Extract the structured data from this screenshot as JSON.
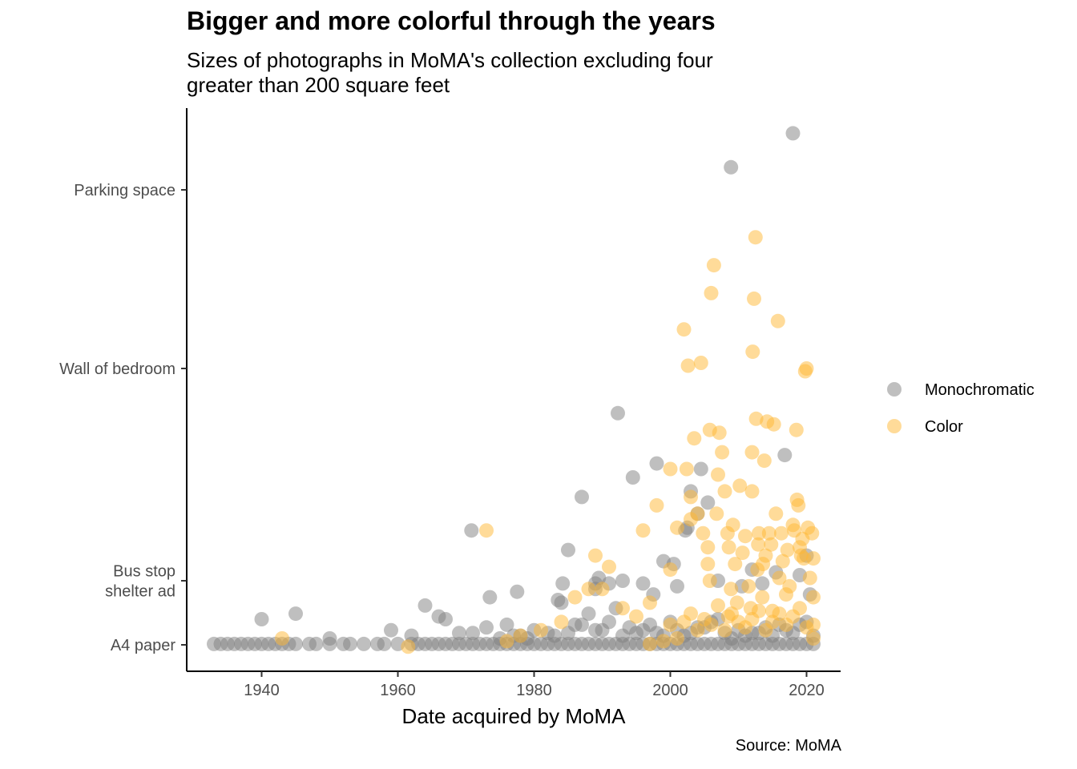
{
  "chart_data": {
    "type": "scatter",
    "title": "Bigger and more colorful through the years",
    "subtitle": [
      "Sizes of photographs in MoMA's collection excluding four",
      "greater than 200 square feet"
    ],
    "caption": "Source: MoMA",
    "xlabel": "Date acquired by MoMA",
    "ylabel": "",
    "xlim": [
      1929,
      2025
    ],
    "ylim": [
      -3,
      200
    ],
    "grid": false,
    "legend_position": "right",
    "x_ticks": [
      1940,
      1960,
      1980,
      2000,
      2020
    ],
    "y_ticks": [
      {
        "value": 0.67,
        "label": [
          "A4 paper"
        ]
      },
      {
        "value": 24,
        "label": [
          "Bus stop",
          "shelter ad"
        ]
      },
      {
        "value": 100,
        "label": [
          "Wall of bedroom"
        ]
      },
      {
        "value": 164,
        "label": [
          "Parking space"
        ]
      }
    ],
    "colors": {
      "Monochromatic": "#808080",
      "Color": "#ffb833"
    },
    "series": [
      {
        "name": "Monochromatic",
        "color": "#808080",
        "points": [
          [
            1933,
            1
          ],
          [
            1934,
            1
          ],
          [
            1935,
            1
          ],
          [
            1936,
            1
          ],
          [
            1937,
            1
          ],
          [
            1938,
            1
          ],
          [
            1939,
            1
          ],
          [
            1940,
            1
          ],
          [
            1941,
            1
          ],
          [
            1942,
            1
          ],
          [
            1943,
            1
          ],
          [
            1944,
            1
          ],
          [
            1945,
            1
          ],
          [
            1947,
            1
          ],
          [
            1948,
            1
          ],
          [
            1950,
            1
          ],
          [
            1952,
            1
          ],
          [
            1953,
            1
          ],
          [
            1955,
            1
          ],
          [
            1957,
            1
          ],
          [
            1958,
            1
          ],
          [
            1960,
            1
          ],
          [
            1962,
            1
          ],
          [
            1963,
            1
          ],
          [
            1964,
            1
          ],
          [
            1965,
            1
          ],
          [
            1966,
            1
          ],
          [
            1967,
            1
          ],
          [
            1968,
            1
          ],
          [
            1969,
            1
          ],
          [
            1970,
            1
          ],
          [
            1971,
            1
          ],
          [
            1972,
            1
          ],
          [
            1973,
            1
          ],
          [
            1974,
            1
          ],
          [
            1975,
            1
          ],
          [
            1976,
            1
          ],
          [
            1977,
            1
          ],
          [
            1978,
            1
          ],
          [
            1979,
            1
          ],
          [
            1980,
            1
          ],
          [
            1981,
            1
          ],
          [
            1982,
            1
          ],
          [
            1983,
            1
          ],
          [
            1984,
            1
          ],
          [
            1985,
            1
          ],
          [
            1986,
            1
          ],
          [
            1987,
            1
          ],
          [
            1988,
            1
          ],
          [
            1989,
            1
          ],
          [
            1990,
            1
          ],
          [
            1991,
            1
          ],
          [
            1992,
            1
          ],
          [
            1993,
            1
          ],
          [
            1994,
            1
          ],
          [
            1995,
            1
          ],
          [
            1996,
            1
          ],
          [
            1997,
            1
          ],
          [
            1998,
            1
          ],
          [
            1999,
            1
          ],
          [
            2000,
            1
          ],
          [
            2001,
            1
          ],
          [
            2002,
            1
          ],
          [
            2003,
            1
          ],
          [
            2004,
            1
          ],
          [
            2005,
            1
          ],
          [
            2006,
            1
          ],
          [
            2007,
            1
          ],
          [
            2008,
            1
          ],
          [
            2009,
            1
          ],
          [
            2010,
            1
          ],
          [
            2011,
            1
          ],
          [
            2012,
            1
          ],
          [
            2013,
            1
          ],
          [
            2014,
            1
          ],
          [
            2015,
            1
          ],
          [
            2016,
            1
          ],
          [
            2017,
            1
          ],
          [
            2018,
            1
          ],
          [
            2019,
            1
          ],
          [
            2020,
            1
          ],
          [
            2021,
            1
          ],
          [
            1940,
            10
          ],
          [
            1945,
            12
          ],
          [
            1950,
            3
          ],
          [
            1959,
            6
          ],
          [
            1962,
            4
          ],
          [
            1964,
            15
          ],
          [
            1966,
            11
          ],
          [
            1967,
            10
          ],
          [
            1971,
            5
          ],
          [
            1976,
            8
          ],
          [
            1978,
            4
          ],
          [
            1980,
            6
          ],
          [
            1982,
            5
          ],
          [
            1984,
            16
          ],
          [
            1986,
            8
          ],
          [
            1988,
            12
          ],
          [
            1990,
            6
          ],
          [
            1992,
            14
          ],
          [
            1994,
            7
          ],
          [
            1996,
            6
          ],
          [
            1998,
            5
          ],
          [
            2000,
            9
          ],
          [
            2002,
            4
          ],
          [
            2004,
            7
          ],
          [
            2006,
            9
          ],
          [
            2008,
            5
          ],
          [
            2009,
            3
          ],
          [
            2011,
            4
          ],
          [
            2013,
            5
          ],
          [
            2015,
            4
          ],
          [
            2017,
            6
          ],
          [
            2019,
            8
          ],
          [
            2021,
            4
          ],
          [
            1969,
            5
          ],
          [
            1973,
            7
          ],
          [
            1975,
            3
          ],
          [
            1977,
            4
          ],
          [
            1979,
            3
          ],
          [
            1983,
            4
          ],
          [
            1985,
            5
          ],
          [
            1987,
            8
          ],
          [
            1989,
            6
          ],
          [
            1991,
            9
          ],
          [
            1993,
            4
          ],
          [
            1995,
            5
          ],
          [
            1997,
            8
          ],
          [
            1999,
            4
          ],
          [
            2001,
            6
          ],
          [
            2003,
            5
          ],
          [
            2005,
            7
          ],
          [
            2007,
            10
          ],
          [
            2010,
            6
          ],
          [
            2012,
            5
          ],
          [
            2014,
            7
          ],
          [
            2016,
            8
          ],
          [
            2018,
            5
          ],
          [
            2020,
            9
          ],
          [
            1970.8,
            42
          ],
          [
            1973.5,
            18
          ],
          [
            1977.5,
            20
          ],
          [
            1983.5,
            17
          ],
          [
            1984.2,
            23
          ],
          [
            1985,
            35
          ],
          [
            1987,
            54
          ],
          [
            1989,
            23
          ],
          [
            1989,
            21
          ],
          [
            1989.5,
            25
          ],
          [
            1991,
            23
          ],
          [
            1992.3,
            84
          ],
          [
            1993,
            24
          ],
          [
            1994.5,
            61
          ],
          [
            1996,
            23
          ],
          [
            1997.5,
            19
          ],
          [
            1998,
            66
          ],
          [
            1999,
            31
          ],
          [
            2000.5,
            30
          ],
          [
            2001,
            22
          ],
          [
            2002.2,
            42
          ],
          [
            2002.5,
            43
          ],
          [
            2003,
            56
          ],
          [
            2004,
            48
          ],
          [
            2004.5,
            64
          ],
          [
            2005.5,
            52
          ],
          [
            2007,
            24
          ],
          [
            2008.9,
            172
          ],
          [
            2010.5,
            22
          ],
          [
            2012,
            28
          ],
          [
            2013.5,
            23
          ],
          [
            2015.5,
            27
          ],
          [
            2016.8,
            69
          ],
          [
            2018,
            184
          ],
          [
            2019,
            26
          ],
          [
            2020,
            33
          ],
          [
            2020.5,
            19
          ]
        ]
      },
      {
        "name": "Color",
        "color": "#ffb833",
        "points": [
          [
            1943,
            3
          ],
          [
            1961.5,
            0
          ],
          [
            1973,
            42
          ],
          [
            1976,
            2
          ],
          [
            1978,
            4
          ],
          [
            1981,
            6
          ],
          [
            1984,
            9
          ],
          [
            1986,
            18
          ],
          [
            1988,
            21
          ],
          [
            1989,
            33
          ],
          [
            1990,
            21
          ],
          [
            1991,
            29
          ],
          [
            1993,
            14
          ],
          [
            1995,
            11
          ],
          [
            1996,
            42
          ],
          [
            1997,
            16
          ],
          [
            1997,
            1
          ],
          [
            1998,
            51
          ],
          [
            1999,
            2
          ],
          [
            2000,
            28
          ],
          [
            2000,
            64
          ],
          [
            2001,
            3
          ],
          [
            2001,
            43
          ],
          [
            2002,
            114
          ],
          [
            2002.4,
            64
          ],
          [
            2002.6,
            101
          ],
          [
            2003,
            54
          ],
          [
            2003,
            46
          ],
          [
            2003.5,
            75
          ],
          [
            2004,
            48
          ],
          [
            2004.5,
            102
          ],
          [
            2004.8,
            41
          ],
          [
            2005.5,
            36
          ],
          [
            2005.5,
            30
          ],
          [
            2005.8,
            24
          ],
          [
            2005.8,
            78
          ],
          [
            2006,
            127
          ],
          [
            2006.4,
            137
          ],
          [
            2006.8,
            48
          ],
          [
            2007,
            62
          ],
          [
            2007.2,
            77
          ],
          [
            2007.6,
            70
          ],
          [
            2008,
            56
          ],
          [
            2008.4,
            41
          ],
          [
            2008.5,
            11
          ],
          [
            2008.6,
            36
          ],
          [
            2008.9,
            21
          ],
          [
            2009.2,
            44
          ],
          [
            2009.5,
            30
          ],
          [
            2009.8,
            16
          ],
          [
            2010.2,
            58
          ],
          [
            2010.6,
            34
          ],
          [
            2011,
            40
          ],
          [
            2011.5,
            22
          ],
          [
            2011.8,
            14
          ],
          [
            2012,
            56
          ],
          [
            2012,
            70
          ],
          [
            2012.1,
            106
          ],
          [
            2012.3,
            125
          ],
          [
            2012.5,
            147
          ],
          [
            2012.6,
            82
          ],
          [
            2012.8,
            28
          ],
          [
            2012.9,
            37
          ],
          [
            2013,
            41
          ],
          [
            2013.5,
            18
          ],
          [
            2013.6,
            30
          ],
          [
            2013.8,
            67
          ],
          [
            2014,
            33
          ],
          [
            2014.2,
            81
          ],
          [
            2014.5,
            41
          ],
          [
            2014.8,
            37
          ],
          [
            2015,
            13
          ],
          [
            2015.2,
            80
          ],
          [
            2015.5,
            48
          ],
          [
            2015.8,
            117
          ],
          [
            2016,
            25
          ],
          [
            2016.3,
            41
          ],
          [
            2016.5,
            31
          ],
          [
            2017,
            19
          ],
          [
            2017.2,
            35
          ],
          [
            2017.5,
            22
          ],
          [
            2018,
            44
          ],
          [
            2018.2,
            42
          ],
          [
            2018.5,
            78
          ],
          [
            2018.6,
            53
          ],
          [
            2018.8,
            51
          ],
          [
            2019,
            36
          ],
          [
            2019.2,
            33
          ],
          [
            2019.4,
            39
          ],
          [
            2019.6,
            32
          ],
          [
            2019.8,
            99
          ],
          [
            2020,
            100
          ],
          [
            2020.2,
            43
          ],
          [
            2020.5,
            25
          ],
          [
            2020.8,
            41
          ],
          [
            2021,
            32
          ],
          [
            2021,
            18
          ],
          [
            2021,
            8
          ],
          [
            2021,
            3
          ],
          [
            2005,
            10
          ],
          [
            2006,
            8
          ],
          [
            2007,
            15
          ],
          [
            2008,
            6
          ],
          [
            2009,
            12
          ],
          [
            2010,
            9
          ],
          [
            2011,
            7
          ],
          [
            2012,
            10
          ],
          [
            2013,
            13
          ],
          [
            2014,
            6
          ],
          [
            2015,
            9
          ],
          [
            2016,
            12
          ],
          [
            2017,
            8
          ],
          [
            2018,
            11
          ],
          [
            2019,
            14
          ],
          [
            2020,
            7
          ],
          [
            2003,
            12
          ],
          [
            2004,
            6
          ],
          [
            2002,
            9
          ],
          [
            2000,
            8
          ]
        ]
      }
    ]
  }
}
